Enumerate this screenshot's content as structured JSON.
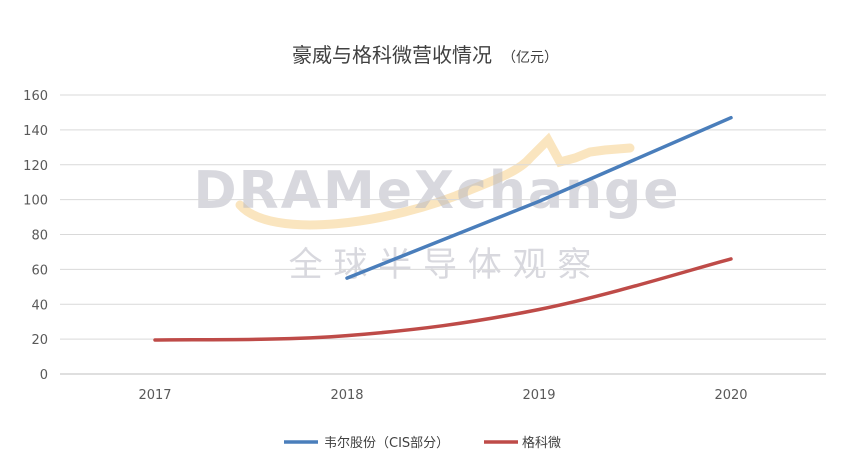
{
  "chart_data": {
    "type": "line",
    "title": "豪威与格科微营收情况",
    "unit": "（亿元）",
    "categories": [
      "2017",
      "2018",
      "2019",
      "2020"
    ],
    "ylim": [
      0,
      160
    ],
    "yticks": [
      0,
      20,
      40,
      60,
      80,
      100,
      120,
      140,
      160
    ],
    "grid": true,
    "legend_position": "bottom",
    "series": [
      {
        "name": "韦尔股份（CIS部分）",
        "color": "#4a7ebb",
        "values": [
          null,
          55,
          99,
          147
        ]
      },
      {
        "name": "格科微",
        "color": "#be4b48",
        "values": [
          19.5,
          22,
          37,
          66
        ]
      }
    ]
  },
  "watermark": {
    "text": "DRAMeXchange",
    "subtext": "全 球 半 导 体 观 察"
  }
}
